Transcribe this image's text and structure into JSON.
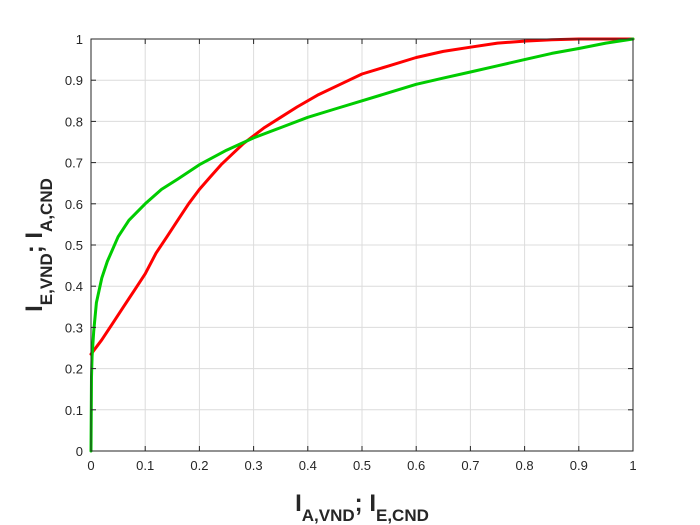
{
  "chart_data": {
    "type": "line",
    "title": "",
    "xlabel": {
      "main": "I",
      "parts": [
        {
          "sub": "A,VND"
        },
        {
          "sep": "; I"
        },
        {
          "sub": "E,CND"
        }
      ]
    },
    "ylabel": {
      "main": "I",
      "parts": [
        {
          "sub": "E,VND"
        },
        {
          "sep": "; I"
        },
        {
          "sub": "A,CND"
        }
      ]
    },
    "xlim": [
      0,
      1
    ],
    "ylim": [
      0,
      1
    ],
    "xticks": [
      "0",
      "0.1",
      "0.2",
      "0.3",
      "0.4",
      "0.5",
      "0.6",
      "0.7",
      "0.8",
      "0.9",
      "1"
    ],
    "yticks": [
      "0",
      "0.1",
      "0.2",
      "0.3",
      "0.4",
      "0.5",
      "0.6",
      "0.7",
      "0.8",
      "0.9",
      "1"
    ],
    "grid": true,
    "legend": "none",
    "series": [
      {
        "color": "#ff0000",
        "x": [
          0,
          0.02,
          0.04,
          0.06,
          0.08,
          0.1,
          0.12,
          0.14,
          0.16,
          0.18,
          0.2,
          0.22,
          0.24,
          0.26,
          0.28,
          0.3,
          0.32,
          0.35,
          0.38,
          0.42,
          0.46,
          0.5,
          0.55,
          0.6,
          0.65,
          0.7,
          0.75,
          0.8,
          0.85,
          0.9,
          0.95,
          1
        ],
        "y": [
          0.235,
          0.27,
          0.31,
          0.35,
          0.39,
          0.43,
          0.48,
          0.52,
          0.56,
          0.6,
          0.635,
          0.665,
          0.695,
          0.72,
          0.745,
          0.765,
          0.785,
          0.81,
          0.835,
          0.865,
          0.89,
          0.915,
          0.935,
          0.955,
          0.97,
          0.98,
          0.99,
          0.995,
          0.998,
          1,
          1,
          1
        ]
      },
      {
        "color": "#00cc00",
        "x": [
          0,
          0.001,
          0.002,
          0.005,
          0.01,
          0.02,
          0.03,
          0.05,
          0.07,
          0.1,
          0.13,
          0.16,
          0.2,
          0.25,
          0.3,
          0.35,
          0.4,
          0.45,
          0.5,
          0.55,
          0.6,
          0.65,
          0.7,
          0.75,
          0.8,
          0.85,
          0.9,
          0.95,
          1
        ],
        "y": [
          0,
          0.18,
          0.23,
          0.29,
          0.36,
          0.42,
          0.46,
          0.52,
          0.56,
          0.6,
          0.635,
          0.66,
          0.695,
          0.73,
          0.76,
          0.785,
          0.81,
          0.83,
          0.85,
          0.87,
          0.89,
          0.905,
          0.92,
          0.935,
          0.95,
          0.965,
          0.977,
          0.99,
          1
        ]
      }
    ]
  }
}
